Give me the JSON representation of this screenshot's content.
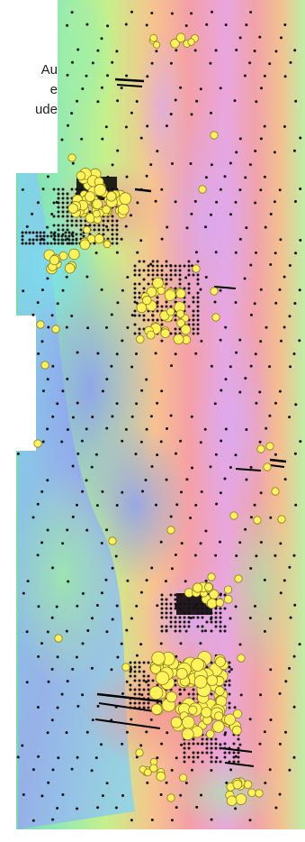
{
  "legend": {
    "line1": "Au",
    "line2": "e",
    "line3": "ude"
  },
  "colors": {
    "sample_fill": "#fff25a",
    "sample_stroke": "#8a7f1e",
    "station_dot": "#111111",
    "survey_line": "#000000"
  },
  "layers": {
    "basemap": "magnetic-intensity-colour-image",
    "samples": "au-anomaly-sample-circles",
    "stations": "survey-station-dots"
  }
}
